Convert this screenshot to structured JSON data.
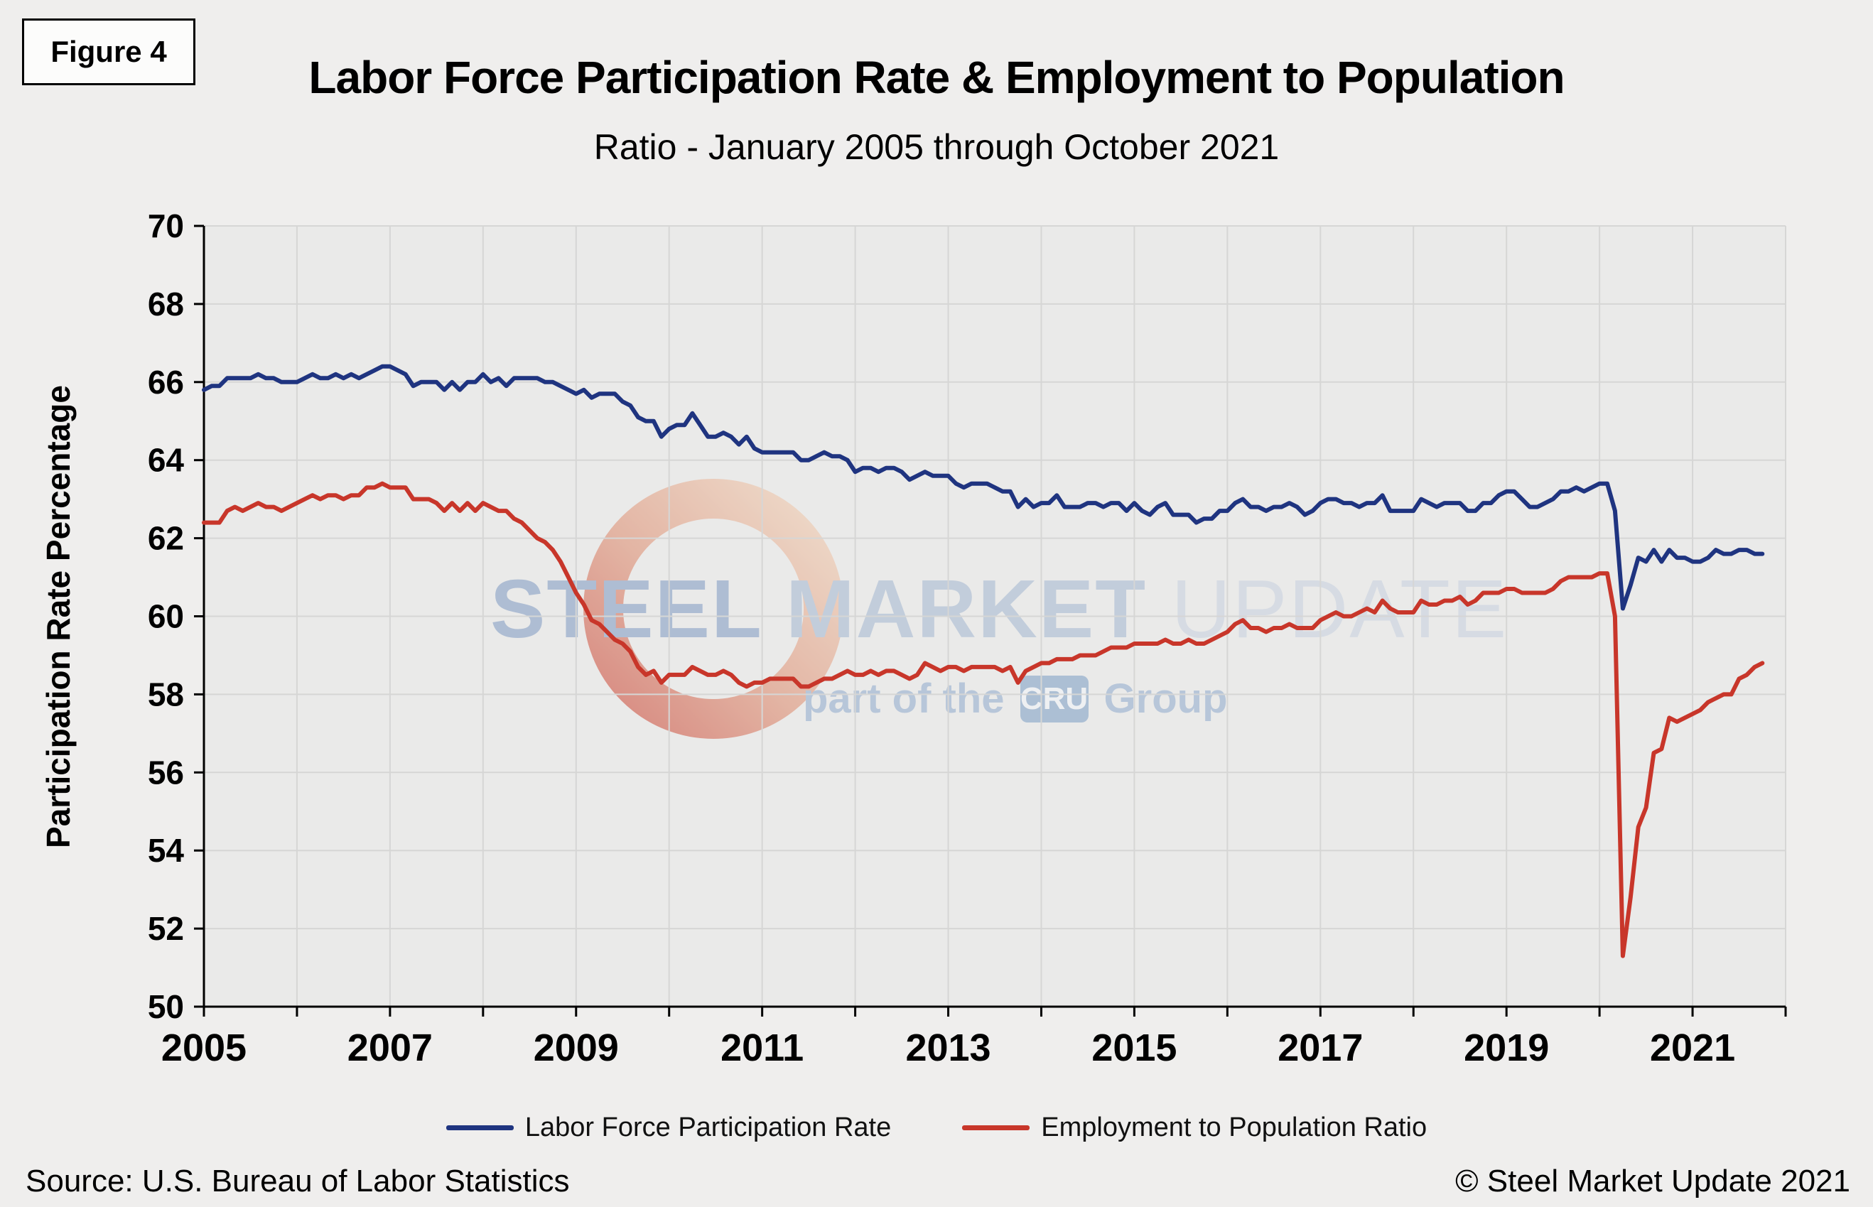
{
  "figure_label": "Figure 4",
  "title": "Labor Force Participation Rate & Employment to Population",
  "subtitle": "Ratio - January 2005 through October 2021",
  "y_axis_label": "Participation Rate Percentage",
  "source": "Source: U.S. Bureau  of Labor Statistics",
  "copyright": "© Steel Market Update 2021",
  "watermark": {
    "word1": "STEEL",
    "word2": "MARKET",
    "word3": "UPDATE",
    "tagline_prefix": "part of the",
    "cru": "CRU",
    "tagline_suffix": "Group"
  },
  "chart_data": {
    "type": "line",
    "title": "Labor Force Participation Rate & Employment to Population Ratio - January 2005 through October 2021",
    "xlabel": "",
    "ylabel": "Participation Rate Percentage",
    "x_start": "2005-01",
    "x_end": "2021-10",
    "x_range": [
      2005,
      2022
    ],
    "x_ticks": [
      2005,
      2007,
      2009,
      2011,
      2013,
      2015,
      2017,
      2019,
      2021
    ],
    "ylim": [
      50,
      70
    ],
    "y_ticks": [
      50,
      52,
      54,
      56,
      58,
      60,
      62,
      64,
      66,
      68,
      70
    ],
    "grid": true,
    "legend_position": "bottom",
    "series": [
      {
        "name": "Labor Force Participation Rate",
        "color": "#1F3480",
        "values": [
          65.8,
          65.9,
          65.9,
          66.1,
          66.1,
          66.1,
          66.1,
          66.2,
          66.1,
          66.1,
          66.0,
          66.0,
          66.0,
          66.1,
          66.2,
          66.1,
          66.1,
          66.2,
          66.1,
          66.2,
          66.1,
          66.2,
          66.3,
          66.4,
          66.4,
          66.3,
          66.2,
          65.9,
          66.0,
          66.0,
          66.0,
          65.8,
          66.0,
          65.8,
          66.0,
          66.0,
          66.2,
          66.0,
          66.1,
          65.9,
          66.1,
          66.1,
          66.1,
          66.1,
          66.0,
          66.0,
          65.9,
          65.8,
          65.7,
          65.8,
          65.6,
          65.7,
          65.7,
          65.7,
          65.5,
          65.4,
          65.1,
          65.0,
          65.0,
          64.6,
          64.8,
          64.9,
          64.9,
          65.2,
          64.9,
          64.6,
          64.6,
          64.7,
          64.6,
          64.4,
          64.6,
          64.3,
          64.2,
          64.2,
          64.2,
          64.2,
          64.2,
          64.0,
          64.0,
          64.1,
          64.2,
          64.1,
          64.1,
          64.0,
          63.7,
          63.8,
          63.8,
          63.7,
          63.8,
          63.8,
          63.7,
          63.5,
          63.6,
          63.7,
          63.6,
          63.6,
          63.6,
          63.4,
          63.3,
          63.4,
          63.4,
          63.4,
          63.3,
          63.2,
          63.2,
          62.8,
          63.0,
          62.8,
          62.9,
          62.9,
          63.1,
          62.8,
          62.8,
          62.8,
          62.9,
          62.9,
          62.8,
          62.9,
          62.9,
          62.7,
          62.9,
          62.7,
          62.6,
          62.8,
          62.9,
          62.6,
          62.6,
          62.6,
          62.4,
          62.5,
          62.5,
          62.7,
          62.7,
          62.9,
          63.0,
          62.8,
          62.8,
          62.7,
          62.8,
          62.8,
          62.9,
          62.8,
          62.6,
          62.7,
          62.9,
          63.0,
          63.0,
          62.9,
          62.9,
          62.8,
          62.9,
          62.9,
          63.1,
          62.7,
          62.7,
          62.7,
          62.7,
          63.0,
          62.9,
          62.8,
          62.9,
          62.9,
          62.9,
          62.7,
          62.7,
          62.9,
          62.9,
          63.1,
          63.2,
          63.2,
          63.0,
          62.8,
          62.8,
          62.9,
          63.0,
          63.2,
          63.2,
          63.3,
          63.2,
          63.3,
          63.4,
          63.4,
          62.7,
          60.2,
          60.8,
          61.5,
          61.4,
          61.7,
          61.4,
          61.7,
          61.5,
          61.5,
          61.4,
          61.4,
          61.5,
          61.7,
          61.6,
          61.6,
          61.7,
          61.7,
          61.6,
          61.6
        ]
      },
      {
        "name": "Employment to Population Ratio",
        "color": "#C8362A",
        "values": [
          62.4,
          62.4,
          62.4,
          62.7,
          62.8,
          62.7,
          62.8,
          62.9,
          62.8,
          62.8,
          62.7,
          62.8,
          62.9,
          63.0,
          63.1,
          63.0,
          63.1,
          63.1,
          63.0,
          63.1,
          63.1,
          63.3,
          63.3,
          63.4,
          63.3,
          63.3,
          63.3,
          63.0,
          63.0,
          63.0,
          62.9,
          62.7,
          62.9,
          62.7,
          62.9,
          62.7,
          62.9,
          62.8,
          62.7,
          62.7,
          62.5,
          62.4,
          62.2,
          62.0,
          61.9,
          61.7,
          61.4,
          61.0,
          60.6,
          60.3,
          59.9,
          59.8,
          59.6,
          59.4,
          59.3,
          59.1,
          58.7,
          58.5,
          58.6,
          58.3,
          58.5,
          58.5,
          58.5,
          58.7,
          58.6,
          58.5,
          58.5,
          58.6,
          58.5,
          58.3,
          58.2,
          58.3,
          58.3,
          58.4,
          58.4,
          58.4,
          58.4,
          58.2,
          58.2,
          58.3,
          58.4,
          58.4,
          58.5,
          58.6,
          58.5,
          58.5,
          58.6,
          58.5,
          58.6,
          58.6,
          58.5,
          58.4,
          58.5,
          58.8,
          58.7,
          58.6,
          58.7,
          58.7,
          58.6,
          58.7,
          58.7,
          58.7,
          58.7,
          58.6,
          58.7,
          58.3,
          58.6,
          58.7,
          58.8,
          58.8,
          58.9,
          58.9,
          58.9,
          59.0,
          59.0,
          59.0,
          59.1,
          59.2,
          59.2,
          59.2,
          59.3,
          59.3,
          59.3,
          59.3,
          59.4,
          59.3,
          59.3,
          59.4,
          59.3,
          59.3,
          59.4,
          59.5,
          59.6,
          59.8,
          59.9,
          59.7,
          59.7,
          59.6,
          59.7,
          59.7,
          59.8,
          59.7,
          59.7,
          59.7,
          59.9,
          60.0,
          60.1,
          60.0,
          60.0,
          60.1,
          60.2,
          60.1,
          60.4,
          60.2,
          60.1,
          60.1,
          60.1,
          60.4,
          60.3,
          60.3,
          60.4,
          60.4,
          60.5,
          60.3,
          60.4,
          60.6,
          60.6,
          60.6,
          60.7,
          60.7,
          60.6,
          60.6,
          60.6,
          60.6,
          60.7,
          60.9,
          61.0,
          61.0,
          61.0,
          61.0,
          61.1,
          61.1,
          60.0,
          51.3,
          52.8,
          54.6,
          55.1,
          56.5,
          56.6,
          57.4,
          57.3,
          57.4,
          57.5,
          57.6,
          57.8,
          57.9,
          58.0,
          58.0,
          58.4,
          58.5,
          58.7,
          58.8
        ]
      }
    ]
  }
}
